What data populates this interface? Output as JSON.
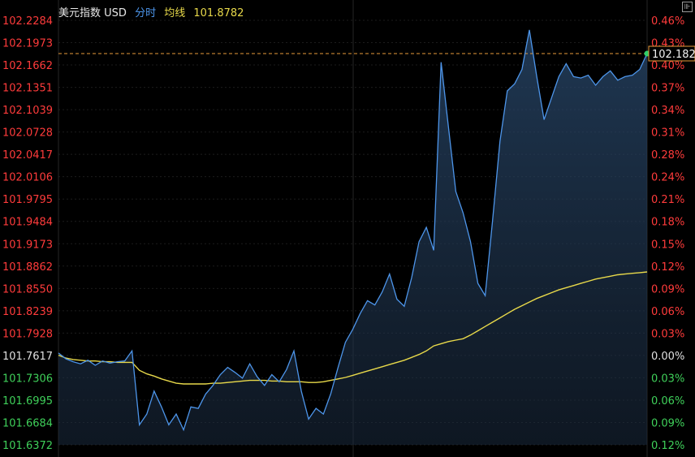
{
  "header": {
    "name": "美元指数 USD",
    "mode": "分时",
    "avg_label": "均线",
    "avg_value": "101.8782"
  },
  "current_price_tag": "102.182",
  "colors": {
    "price_line": "#4d95ea",
    "avg_line": "#e8d94a",
    "up": "#ff3b3b",
    "down": "#3fd05a",
    "neutral": "#e0e0e0",
    "ref_line": "#e89a3a"
  },
  "chart_data": {
    "type": "line",
    "title": "美元指数 USD",
    "base_price": 101.7617,
    "current_price": 102.182,
    "ylim": [
      101.6372,
      102.2284
    ],
    "price_ticks": [
      "102.2284",
      "102.1973",
      "102.1662",
      "102.1351",
      "102.1039",
      "102.0728",
      "102.0417",
      "102.0106",
      "101.9795",
      "101.9484",
      "101.9173",
      "101.8862",
      "101.8550",
      "101.8239",
      "101.7928",
      "101.7617",
      "101.7306",
      "101.6995",
      "101.6684",
      "101.6372"
    ],
    "percent_ticks": [
      "0.46%",
      "0.43%",
      "0.40%",
      "0.37%",
      "0.34%",
      "0.31%",
      "0.28%",
      "0.24%",
      "0.21%",
      "0.18%",
      "0.15%",
      "0.12%",
      "0.09%",
      "0.06%",
      "0.03%",
      "0.00%",
      "0.03%",
      "0.06%",
      "0.09%",
      "0.12%"
    ],
    "x": [
      0,
      0.15,
      0.3,
      0.45,
      0.6,
      0.75,
      0.9,
      1.05,
      1.2,
      1.35,
      1.5,
      1.65,
      1.8,
      1.95,
      2.1,
      2.25,
      2.4,
      2.55,
      2.7,
      2.85,
      3.0,
      3.15,
      3.3,
      3.45,
      3.6,
      3.75,
      3.9,
      4.05,
      4.2,
      4.35,
      4.5,
      4.65,
      4.8,
      4.95,
      5.1,
      5.25,
      5.4,
      5.55,
      5.7,
      5.85,
      6.0,
      6.15,
      6.3,
      6.45,
      6.6,
      6.75,
      6.9,
      7.05,
      7.2,
      7.35,
      7.5,
      7.65,
      7.8,
      7.95,
      8.1,
      8.25,
      8.4,
      8.55,
      8.7,
      8.85,
      9.0,
      9.15,
      9.3,
      9.45,
      9.6,
      9.75,
      9.9,
      10.05,
      10.2,
      10.35,
      10.5,
      10.65,
      10.8,
      10.95,
      11.1,
      11.25,
      11.4,
      11.55,
      11.7,
      11.85,
      12.0
    ],
    "series": [
      {
        "values": [
          101.765,
          101.757,
          101.753,
          101.75,
          101.755,
          101.748,
          101.754,
          101.751,
          101.753,
          101.754,
          101.768,
          101.665,
          101.68,
          101.712,
          101.69,
          101.665,
          101.68,
          101.658,
          101.69,
          101.688,
          101.708,
          101.72,
          101.735,
          101.745,
          101.738,
          101.73,
          101.75,
          101.732,
          101.72,
          101.735,
          101.725,
          101.742,
          101.768,
          101.712,
          101.673,
          101.688,
          101.68,
          101.708,
          101.745,
          101.78,
          101.798,
          101.82,
          101.838,
          101.832,
          101.85,
          101.875,
          101.84,
          101.83,
          101.87,
          101.92,
          101.94,
          101.908,
          102.17,
          102.08,
          101.99,
          101.96,
          101.92,
          101.862,
          101.845,
          101.95,
          102.06,
          102.13,
          102.14,
          102.16,
          102.215,
          102.15,
          102.09,
          102.12,
          102.15,
          102.168,
          102.15,
          102.148,
          102.152,
          102.138,
          102.15,
          102.158,
          102.145,
          102.15,
          102.152,
          102.16,
          102.182
        ]
      },
      {
        "values": [
          101.762,
          101.758,
          101.756,
          101.755,
          101.754,
          101.754,
          101.753,
          101.753,
          101.752,
          101.752,
          101.752,
          101.741,
          101.736,
          101.733,
          101.729,
          101.726,
          101.723,
          101.722,
          101.722,
          101.722,
          101.722,
          101.723,
          101.723,
          101.724,
          101.725,
          101.726,
          101.727,
          101.727,
          101.727,
          101.726,
          101.726,
          101.725,
          101.725,
          101.725,
          101.724,
          101.724,
          101.725,
          101.727,
          101.729,
          101.731,
          101.734,
          101.737,
          101.74,
          101.743,
          101.746,
          101.749,
          101.752,
          101.755,
          101.759,
          101.763,
          101.768,
          101.775,
          101.778,
          101.781,
          101.783,
          101.785,
          101.79,
          101.796,
          101.802,
          101.808,
          101.814,
          101.82,
          101.826,
          101.831,
          101.836,
          101.841,
          101.845,
          101.849,
          101.853,
          101.856,
          101.859,
          101.862,
          101.865,
          101.868,
          101.87,
          101.872,
          101.874,
          101.875,
          101.876,
          101.877,
          101.878
        ]
      }
    ]
  }
}
